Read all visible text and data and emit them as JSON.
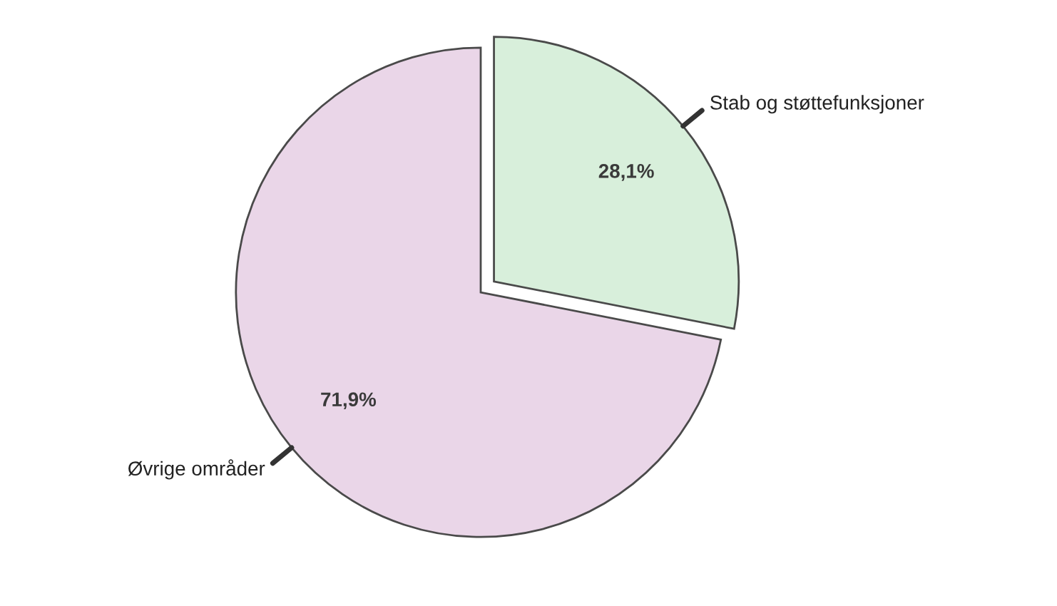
{
  "chart_data": {
    "type": "pie",
    "categories": [
      "Stab og støttefunksjoner",
      "Øvrige områder"
    ],
    "values": [
      28.1,
      71.9
    ],
    "colors": [
      "#d8efdb",
      "#ead6e8"
    ],
    "value_labels": [
      "28,1%",
      "71,9%"
    ]
  }
}
